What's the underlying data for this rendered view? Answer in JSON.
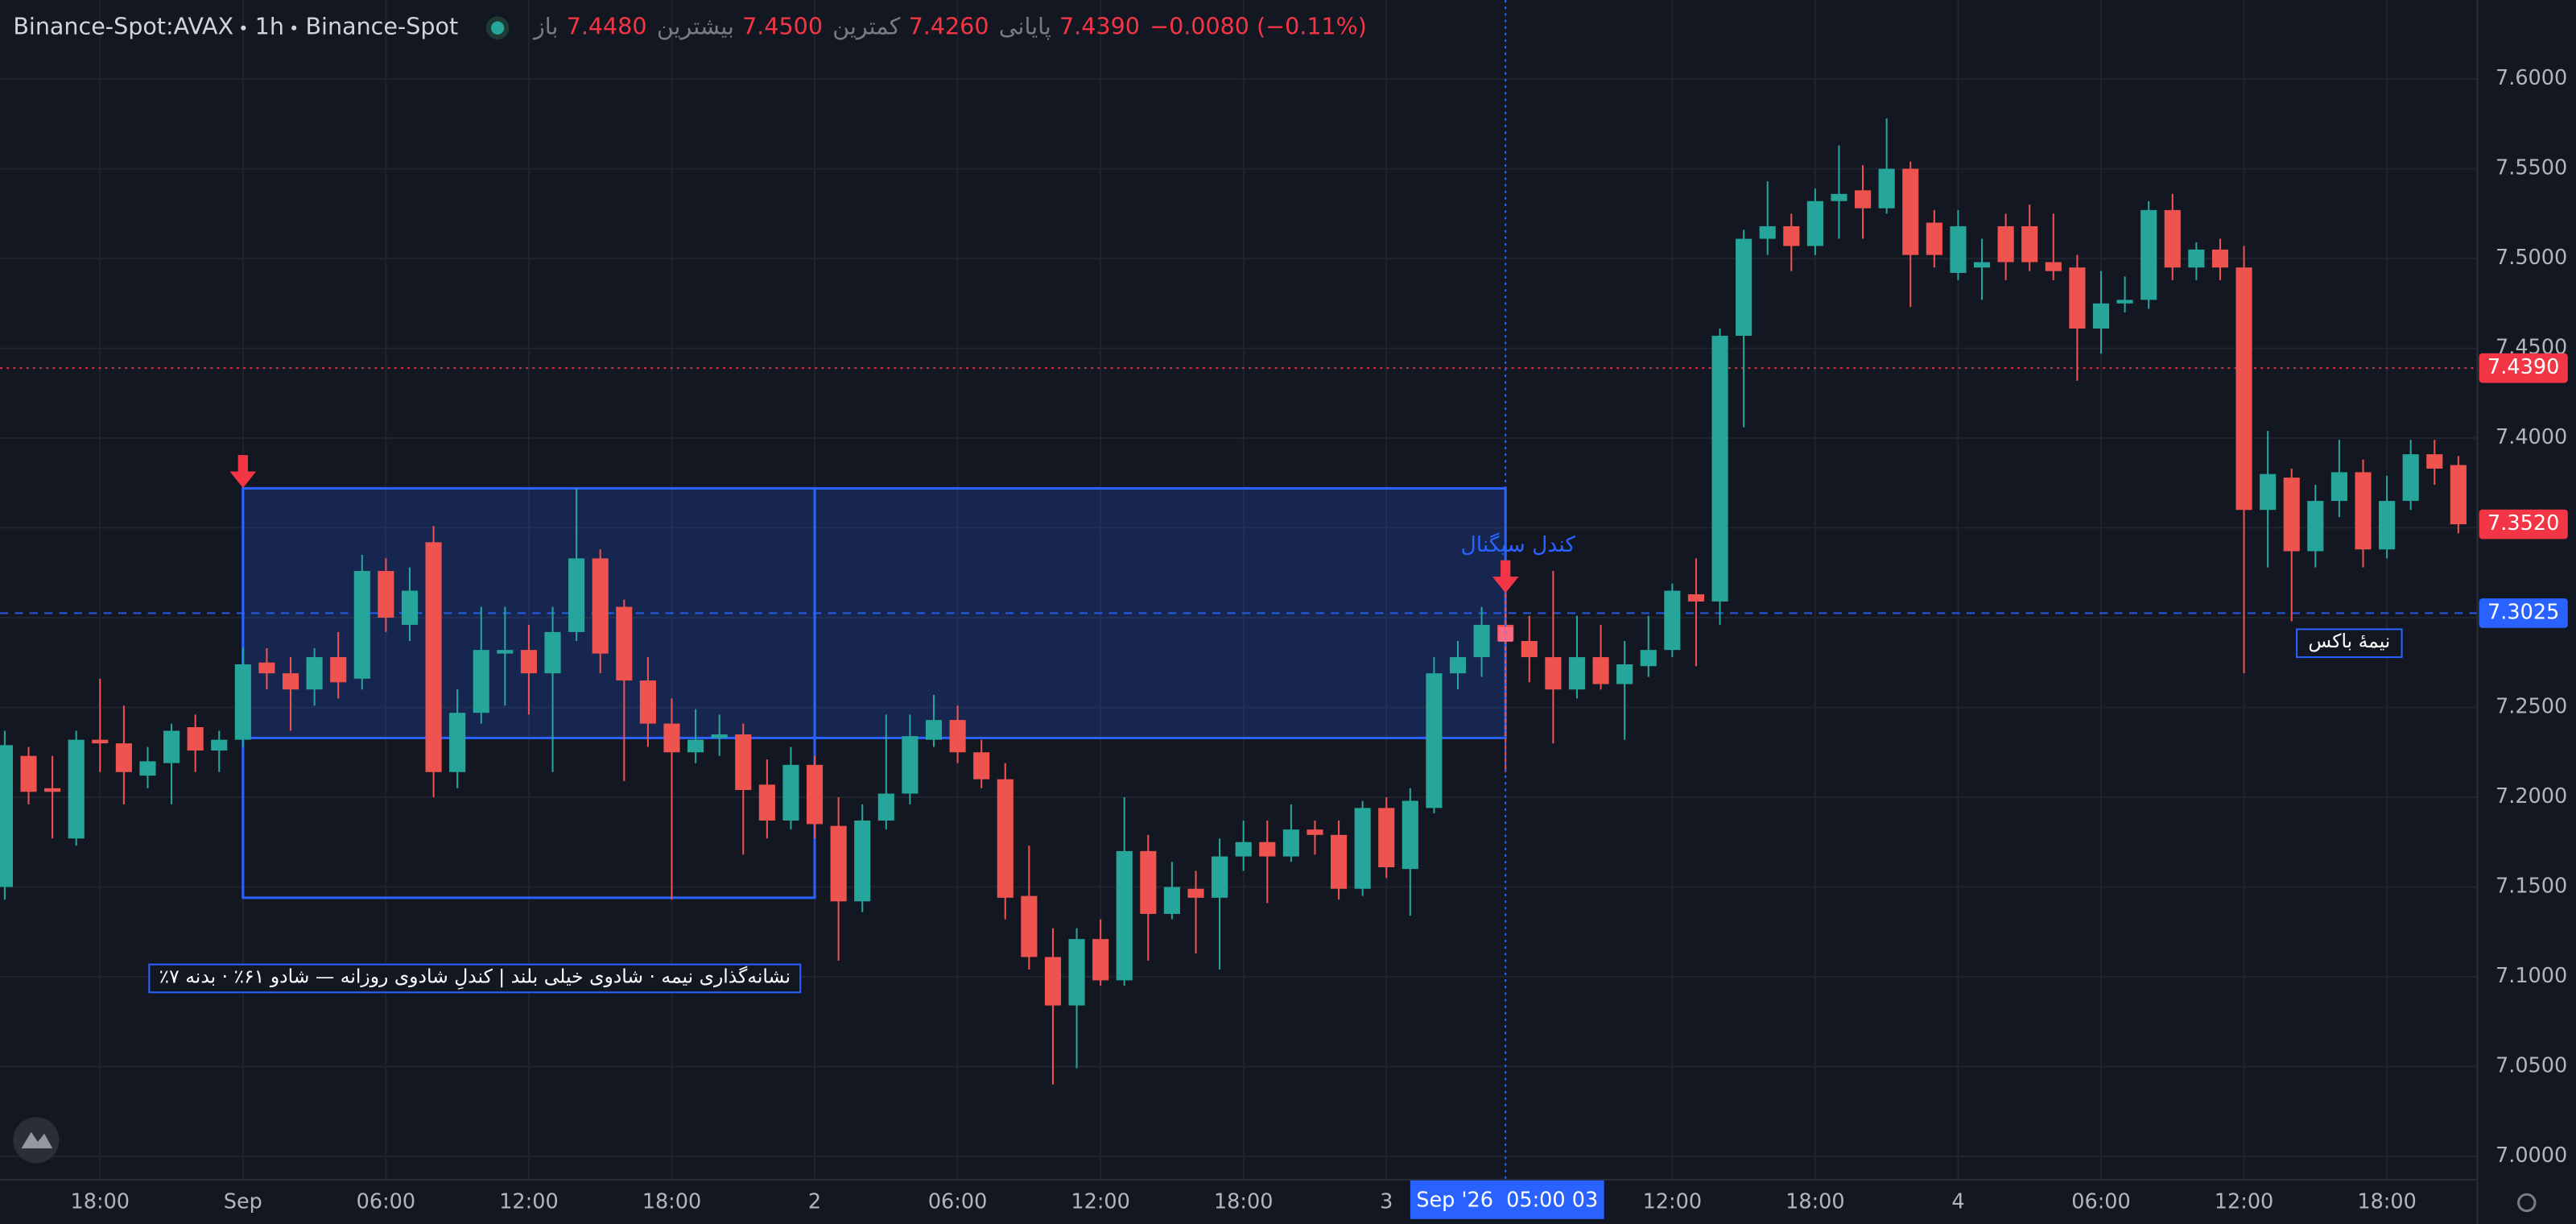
{
  "chart_data": {
    "type": "candlestick",
    "header": {
      "symbol": "Binance-Spot:AVAX",
      "interval": "1h",
      "exchange": "Binance-Spot",
      "ohlc": [
        {
          "label": "باز",
          "value": "7.4480"
        },
        {
          "label": "بیشترین",
          "value": "7.4500"
        },
        {
          "label": "کمترین",
          "value": "7.4260"
        },
        {
          "label": "پایانی",
          "value": "7.4390"
        }
      ],
      "change": "−0.0080 (−0.11%)"
    },
    "up_color": "#26a69a",
    "down_color": "#ef5350",
    "grid": true,
    "x": [
      -10,
      -9,
      -8,
      -7,
      -6,
      -5,
      -4,
      -3,
      -2,
      -1,
      0,
      1,
      2,
      3,
      4,
      5,
      6,
      7,
      8,
      9,
      10,
      11,
      12,
      13,
      14,
      15,
      16,
      17,
      18,
      19,
      20,
      21,
      22,
      23,
      24,
      25,
      26,
      27,
      28,
      29,
      30,
      31,
      32,
      33,
      34,
      35,
      36,
      37,
      38,
      39,
      40,
      41,
      42,
      43,
      44,
      45,
      46,
      47,
      48,
      49,
      50,
      51,
      52,
      53,
      54,
      55,
      56,
      57,
      58,
      59,
      60,
      61,
      62,
      63,
      64,
      65,
      66,
      67,
      68,
      69,
      70,
      71,
      72,
      73,
      74,
      75,
      76,
      77,
      78,
      79,
      80,
      81,
      82,
      83,
      84,
      85,
      86,
      87,
      88,
      89,
      90,
      91,
      92,
      93
    ],
    "open": [
      7.15,
      7.223,
      7.205,
      7.177,
      7.232,
      7.23,
      7.212,
      7.219,
      7.239,
      7.226,
      7.232,
      7.275,
      7.269,
      7.26,
      7.278,
      7.266,
      7.326,
      7.296,
      7.342,
      7.214,
      7.247,
      7.28,
      7.282,
      7.269,
      7.292,
      7.333,
      7.306,
      7.265,
      7.241,
      7.225,
      7.233,
      7.235,
      7.207,
      7.187,
      7.218,
      7.184,
      7.142,
      7.187,
      7.202,
      7.232,
      7.243,
      7.225,
      7.21,
      7.145,
      7.111,
      7.084,
      7.121,
      7.098,
      7.17,
      7.135,
      7.149,
      7.144,
      7.167,
      7.175,
      7.167,
      7.182,
      7.179,
      7.149,
      7.194,
      7.16,
      7.194,
      7.269,
      7.278,
      7.296,
      7.287,
      7.278,
      7.26,
      7.278,
      7.263,
      7.273,
      7.282,
      7.313,
      7.309,
      7.457,
      7.511,
      7.518,
      7.507,
      7.532,
      7.538,
      7.528,
      7.55,
      7.52,
      7.492,
      7.495,
      7.518,
      7.518,
      7.498,
      7.495,
      7.461,
      7.475,
      7.477,
      7.527,
      7.495,
      7.505,
      7.495,
      7.36,
      7.378,
      7.337,
      7.365,
      7.381,
      7.338,
      7.365,
      7.391,
      7.385
    ],
    "high": [
      7.237,
      7.228,
      7.223,
      7.237,
      7.266,
      7.251,
      7.228,
      7.241,
      7.246,
      7.237,
      7.283,
      7.283,
      7.278,
      7.283,
      7.292,
      7.335,
      7.333,
      7.328,
      7.351,
      7.26,
      7.306,
      7.306,
      7.296,
      7.306,
      7.372,
      7.338,
      7.31,
      7.278,
      7.255,
      7.249,
      7.246,
      7.241,
      7.221,
      7.228,
      7.223,
      7.2,
      7.196,
      7.246,
      7.246,
      7.257,
      7.251,
      7.232,
      7.219,
      7.173,
      7.127,
      7.127,
      7.132,
      7.2,
      7.179,
      7.164,
      7.159,
      7.177,
      7.187,
      7.187,
      7.196,
      7.187,
      7.187,
      7.198,
      7.2,
      7.205,
      7.278,
      7.287,
      7.306,
      7.315,
      7.301,
      7.326,
      7.301,
      7.296,
      7.287,
      7.301,
      7.319,
      7.333,
      7.461,
      7.516,
      7.543,
      7.525,
      7.539,
      7.563,
      7.552,
      7.578,
      7.554,
      7.527,
      7.527,
      7.511,
      7.525,
      7.53,
      7.525,
      7.502,
      7.493,
      7.49,
      7.532,
      7.536,
      7.509,
      7.511,
      7.507,
      7.404,
      7.383,
      7.374,
      7.399,
      7.388,
      7.379,
      7.399,
      7.399,
      7.39
    ],
    "low": [
      7.143,
      7.196,
      7.177,
      7.173,
      7.214,
      7.196,
      7.205,
      7.196,
      7.214,
      7.214,
      7.228,
      7.26,
      7.237,
      7.251,
      7.255,
      7.26,
      7.292,
      7.287,
      7.2,
      7.205,
      7.241,
      7.251,
      7.246,
      7.214,
      7.287,
      7.269,
      7.209,
      7.228,
      7.143,
      7.219,
      7.223,
      7.168,
      7.177,
      7.182,
      7.177,
      7.109,
      7.136,
      7.182,
      7.196,
      7.228,
      7.219,
      7.205,
      7.132,
      7.104,
      7.04,
      7.049,
      7.095,
      7.095,
      7.109,
      7.132,
      7.113,
      7.104,
      7.159,
      7.141,
      7.164,
      7.168,
      7.143,
      7.145,
      7.155,
      7.134,
      7.191,
      7.26,
      7.267,
      7.214,
      7.264,
      7.23,
      7.255,
      7.26,
      7.232,
      7.267,
      7.278,
      7.273,
      7.296,
      7.406,
      7.502,
      7.493,
      7.502,
      7.511,
      7.511,
      7.525,
      7.473,
      7.495,
      7.488,
      7.477,
      7.488,
      7.493,
      7.488,
      7.432,
      7.447,
      7.47,
      7.472,
      7.488,
      7.488,
      7.488,
      7.269,
      7.328,
      7.298,
      7.328,
      7.356,
      7.328,
      7.333,
      7.36,
      7.374,
      7.347
    ],
    "close": [
      7.229,
      7.203,
      7.203,
      7.232,
      7.23,
      7.214,
      7.22,
      7.237,
      7.226,
      7.232,
      7.274,
      7.269,
      7.26,
      7.278,
      7.264,
      7.326,
      7.3,
      7.315,
      7.214,
      7.247,
      7.282,
      7.282,
      7.269,
      7.292,
      7.333,
      7.28,
      7.265,
      7.241,
      7.225,
      7.232,
      7.235,
      7.204,
      7.187,
      7.218,
      7.185,
      7.142,
      7.187,
      7.202,
      7.234,
      7.243,
      7.225,
      7.21,
      7.144,
      7.111,
      7.084,
      7.121,
      7.098,
      7.17,
      7.135,
      7.15,
      7.144,
      7.167,
      7.175,
      7.167,
      7.182,
      7.179,
      7.149,
      7.194,
      7.161,
      7.198,
      7.269,
      7.278,
      7.296,
      7.287,
      7.278,
      7.26,
      7.278,
      7.263,
      7.274,
      7.282,
      7.315,
      7.309,
      7.457,
      7.511,
      7.518,
      7.507,
      7.532,
      7.536,
      7.528,
      7.55,
      7.502,
      7.502,
      7.518,
      7.498,
      7.498,
      7.498,
      7.493,
      7.461,
      7.475,
      7.477,
      7.527,
      7.495,
      7.505,
      7.495,
      7.36,
      7.38,
      7.337,
      7.365,
      7.381,
      7.338,
      7.365,
      7.391,
      7.383,
      7.352
    ],
    "xlim": [
      -10.2,
      93.8
    ],
    "ylim": [
      6.987,
      7.644
    ],
    "xticks": [
      {
        "value": -6,
        "label": "18:00"
      },
      {
        "value": 0,
        "label": "Sep"
      },
      {
        "value": 6,
        "label": "06:00"
      },
      {
        "value": 12,
        "label": "12:00"
      },
      {
        "value": 18,
        "label": "18:00"
      },
      {
        "value": 24,
        "label": "2"
      },
      {
        "value": 30,
        "label": "06:00"
      },
      {
        "value": 36,
        "label": "12:00"
      },
      {
        "value": 42,
        "label": "18:00"
      },
      {
        "value": 48,
        "label": "3"
      },
      {
        "value": 60,
        "label": "12:00"
      },
      {
        "value": 66,
        "label": "18:00"
      },
      {
        "value": 72,
        "label": "4"
      },
      {
        "value": 78,
        "label": "06:00"
      },
      {
        "value": 84,
        "label": "12:00"
      },
      {
        "value": 90,
        "label": "18:00"
      }
    ],
    "yticks": [
      {
        "value": 7.0,
        "label": "7.0000"
      },
      {
        "value": 7.05,
        "label": "7.0500"
      },
      {
        "value": 7.1,
        "label": "7.1000"
      },
      {
        "value": 7.15,
        "label": "7.1500"
      },
      {
        "value": 7.2,
        "label": "7.2000"
      },
      {
        "value": 7.25,
        "label": "7.2500"
      },
      {
        "value": 7.3,
        "label": "7.3000"
      },
      {
        "value": 7.35,
        "label": "7.3500"
      },
      {
        "value": 7.4,
        "label": "7.4000"
      },
      {
        "value": 7.45,
        "label": "7.4500"
      },
      {
        "value": 7.5,
        "label": "7.5000"
      },
      {
        "value": 7.55,
        "label": "7.5500"
      },
      {
        "value": 7.6,
        "label": "7.6000"
      }
    ],
    "price_lines": [
      {
        "value": 7.439,
        "label": "7.4390",
        "color": "#f23645",
        "line_style": "dotted"
      },
      {
        "value": 7.352,
        "label": "7.3520",
        "color": "#f23645",
        "line_style": "none"
      },
      {
        "value": 7.3025,
        "label": "7.3025",
        "color": "#2962ff",
        "line_style": "dashed"
      }
    ],
    "zones": [
      {
        "from": 0,
        "to": 53,
        "high": 7.372,
        "low": 7.233,
        "fill": true
      },
      {
        "from": 0,
        "to": 24,
        "high": 7.372,
        "low": 7.144,
        "fill": false
      }
    ],
    "signals": [
      0,
      53
    ],
    "crosshair": {
      "x": 53,
      "label": "Sep '26  05:00 03"
    },
    "annotations": {
      "signal_label": "کندل سیگنال",
      "mid_label": "نیمهٔ باکس",
      "note": "٪نشانه‌گذاری نیمه · شادوی خیلی بلند | کندلِ شادوی روزانه — شادو ۶۱٪ · بدنه ۷"
    }
  }
}
